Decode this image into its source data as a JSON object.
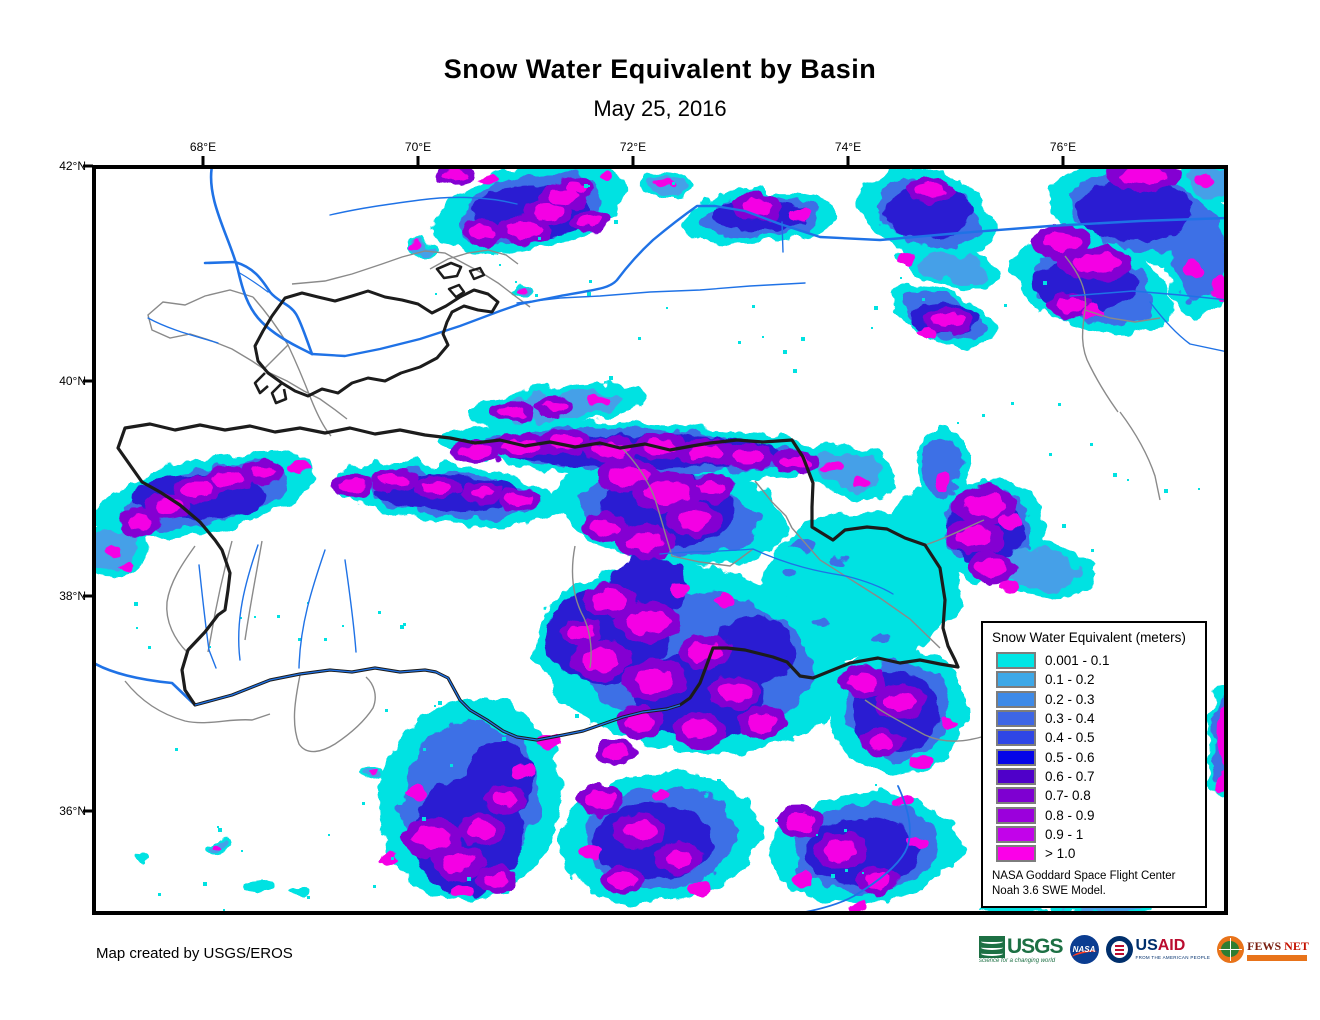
{
  "page": {
    "title": "Snow Water Equivalent by Basin",
    "subtitle": "May 25, 2016"
  },
  "axes": {
    "lon": [
      {
        "label": "68°E"
      },
      {
        "label": "70°E"
      },
      {
        "label": "72°E"
      },
      {
        "label": "74°E"
      },
      {
        "label": "76°E"
      }
    ],
    "lat": [
      {
        "label": "42°N"
      },
      {
        "label": "40°N"
      },
      {
        "label": "38°N"
      },
      {
        "label": "36°N"
      }
    ]
  },
  "legend": {
    "title": "Snow Water Equivalent (meters)",
    "classes": [
      {
        "label": "0.001 - 0.1",
        "color": "#00E5E5"
      },
      {
        "label": "0.1 - 0.2",
        "color": "#3DA8E8"
      },
      {
        "label": "0.2 - 0.3",
        "color": "#3E8AE8"
      },
      {
        "label": "0.3 - 0.4",
        "color": "#3E66E6"
      },
      {
        "label": "0.4 - 0.5",
        "color": "#2F46E6"
      },
      {
        "label": "0.5 - 0.6",
        "color": "#0505E8"
      },
      {
        "label": "0.6 - 0.7",
        "color": "#4F00C9"
      },
      {
        "label": "0.7- 0.8",
        "color": "#7E00D1"
      },
      {
        "label": "0.8 - 0.9",
        "color": "#9B00DC"
      },
      {
        "label": "0.9 - 1",
        "color": "#C203EA"
      },
      {
        "label": "> 1.0",
        "color": "#FB00E8"
      }
    ],
    "source_line1": "NASA Goddard Space Flight Center",
    "source_line2": "Noah 3.6 SWE Model."
  },
  "footer": {
    "credit": "Map created by USGS/EROS"
  },
  "logos": {
    "usgs": {
      "name": "USGS",
      "tagline": "science for a changing world"
    },
    "nasa": {
      "name": "NASA"
    },
    "usaid": {
      "us": "US",
      "aid": "AID",
      "tagline": "FROM THE AMERICAN PEOPLE"
    },
    "fewsnet": {
      "fews": "FEWS",
      "net": "NET"
    }
  },
  "map_colors": {
    "cyan": "#00E2E2",
    "light_blue": "#44A0E8",
    "mid_blue": "#3E6FE6",
    "dark_blue": "#2B1ED2",
    "violet": "#8400D2",
    "magenta": "#F400E4",
    "river": "#1F72E6",
    "basin_boundary": "#8A8A8A",
    "border": "#1C1C1C",
    "frame": "#000000"
  }
}
